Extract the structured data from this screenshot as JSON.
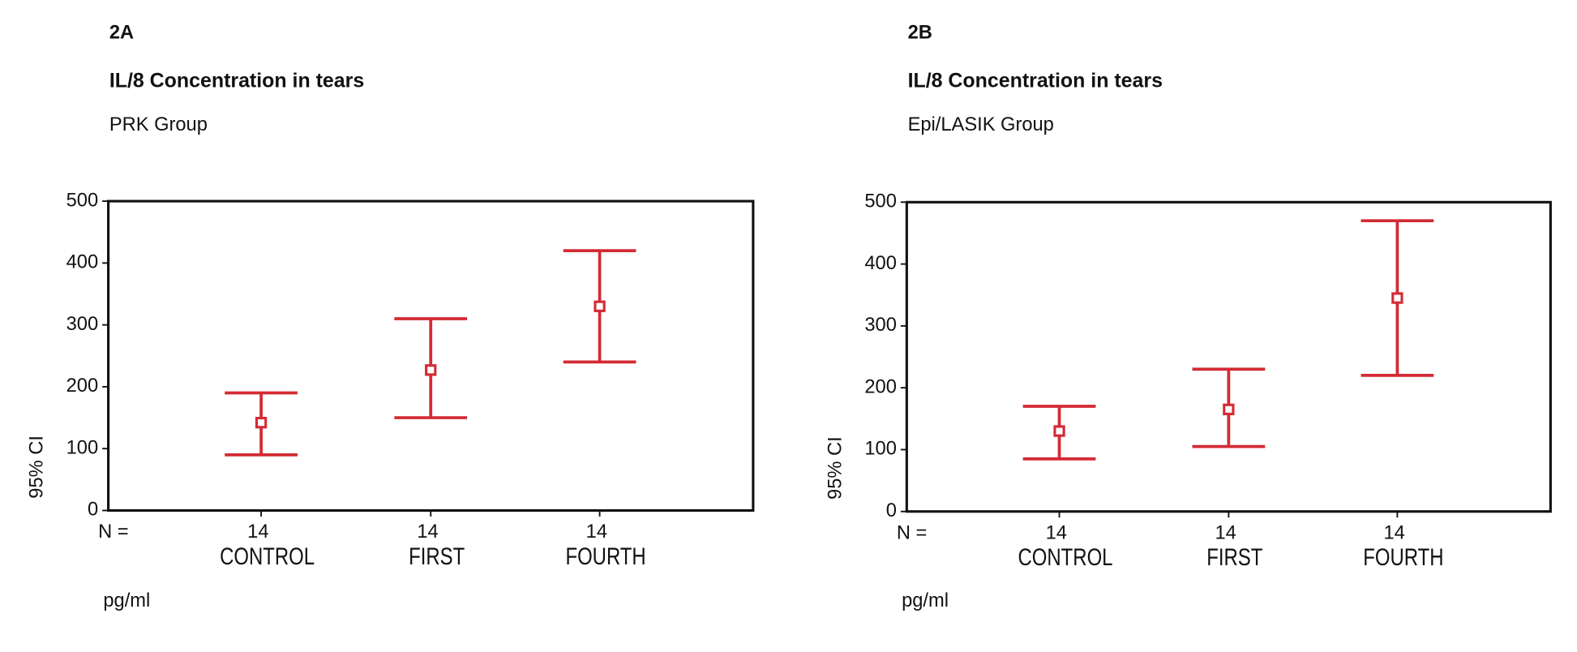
{
  "chart_data": [
    {
      "type": "errorbar",
      "panel": "2A",
      "title": "IL/8 Concentration in tears",
      "subtitle": "PRK Group",
      "categories": [
        "CONTROL",
        "FIRST",
        "FOURTH"
      ],
      "values": [
        142,
        227,
        330
      ],
      "lower": [
        90,
        150,
        240
      ],
      "upper": [
        190,
        310,
        420
      ],
      "n_label": "N =",
      "n_values": [
        14,
        14,
        14
      ],
      "xlabel": "pg/ml",
      "ylabel": "95% CI",
      "ylim": [
        0,
        500
      ],
      "yticks": [
        0,
        100,
        200,
        300,
        400,
        500
      ],
      "color": "#d42a34"
    },
    {
      "type": "errorbar",
      "panel": "2B",
      "title": "IL/8 Concentration in tears",
      "subtitle": "Epi/LASIK Group",
      "categories": [
        "CONTROL",
        "FIRST",
        "FOURTH"
      ],
      "values": [
        130,
        165,
        345
      ],
      "lower": [
        85,
        105,
        220
      ],
      "upper": [
        170,
        230,
        470
      ],
      "n_label": "N =",
      "n_values": [
        14,
        14,
        14
      ],
      "xlabel": "pg/ml",
      "ylabel": "95% CI",
      "ylim": [
        0,
        500
      ],
      "yticks": [
        0,
        100,
        200,
        300,
        400,
        500
      ],
      "color": "#d42a34"
    }
  ]
}
